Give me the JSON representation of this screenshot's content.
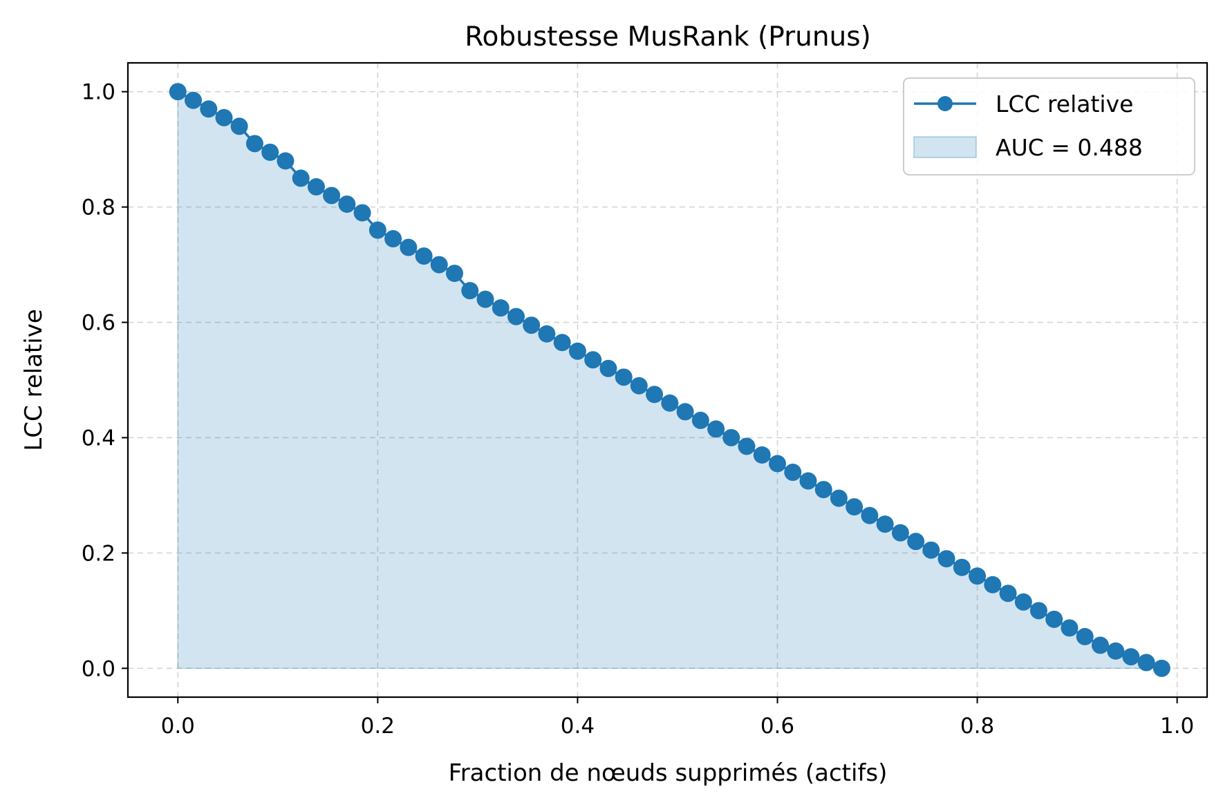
{
  "chart_data": {
    "type": "line",
    "title": "Robustesse MusRank (Prunus)",
    "xlabel": "Fraction de nœuds supprimés (actifs)",
    "ylabel": "LCC relative",
    "xlim": [
      -0.05,
      1.03
    ],
    "ylim": [
      -0.05,
      1.05
    ],
    "xticks": [
      0.0,
      0.2,
      0.4,
      0.6,
      0.8,
      1.0
    ],
    "xtick_labels": [
      "0.0",
      "0.2",
      "0.4",
      "0.6",
      "0.8",
      "1.0"
    ],
    "yticks": [
      0.0,
      0.2,
      0.4,
      0.6,
      0.8,
      1.0
    ],
    "ytick_labels": [
      "0.0",
      "0.2",
      "0.4",
      "0.6",
      "0.8",
      "1.0"
    ],
    "grid": true,
    "legend_position": "top-right",
    "series": [
      {
        "name": "LCC relative",
        "color": "#1f77b4",
        "marker": "circle",
        "fill_under": true,
        "x": [
          0.0,
          0.0154,
          0.0308,
          0.0462,
          0.0615,
          0.0769,
          0.0923,
          0.1077,
          0.1231,
          0.1385,
          0.1538,
          0.1692,
          0.1846,
          0.2,
          0.2154,
          0.2308,
          0.2462,
          0.2615,
          0.2769,
          0.2923,
          0.3077,
          0.3231,
          0.3385,
          0.3538,
          0.3692,
          0.3846,
          0.4,
          0.4154,
          0.4308,
          0.4462,
          0.4615,
          0.4769,
          0.4923,
          0.5077,
          0.5231,
          0.5385,
          0.5538,
          0.5692,
          0.5846,
          0.6,
          0.6154,
          0.6308,
          0.6462,
          0.6615,
          0.6769,
          0.6923,
          0.7077,
          0.7231,
          0.7385,
          0.7538,
          0.7692,
          0.7846,
          0.8,
          0.8154,
          0.8308,
          0.8462,
          0.8615,
          0.8769,
          0.8923,
          0.9077,
          0.9231,
          0.9385,
          0.9538,
          0.9692,
          0.9846
        ],
        "y": [
          1.0,
          0.985,
          0.97,
          0.955,
          0.94,
          0.91,
          0.895,
          0.88,
          0.85,
          0.835,
          0.82,
          0.805,
          0.79,
          0.76,
          0.745,
          0.73,
          0.715,
          0.7,
          0.685,
          0.655,
          0.64,
          0.625,
          0.61,
          0.595,
          0.58,
          0.565,
          0.55,
          0.535,
          0.52,
          0.505,
          0.49,
          0.475,
          0.46,
          0.445,
          0.43,
          0.415,
          0.4,
          0.385,
          0.37,
          0.355,
          0.34,
          0.325,
          0.31,
          0.295,
          0.28,
          0.265,
          0.25,
          0.235,
          0.22,
          0.205,
          0.19,
          0.175,
          0.16,
          0.145,
          0.13,
          0.115,
          0.1,
          0.085,
          0.07,
          0.055,
          0.04,
          0.03,
          0.02,
          0.01,
          0.0
        ]
      }
    ],
    "legend": [
      {
        "label": "LCC relative",
        "kind": "line-marker",
        "color": "#1f77b4"
      },
      {
        "label": "AUC = 0.488",
        "kind": "fill",
        "color": "#1f77b4"
      }
    ]
  }
}
